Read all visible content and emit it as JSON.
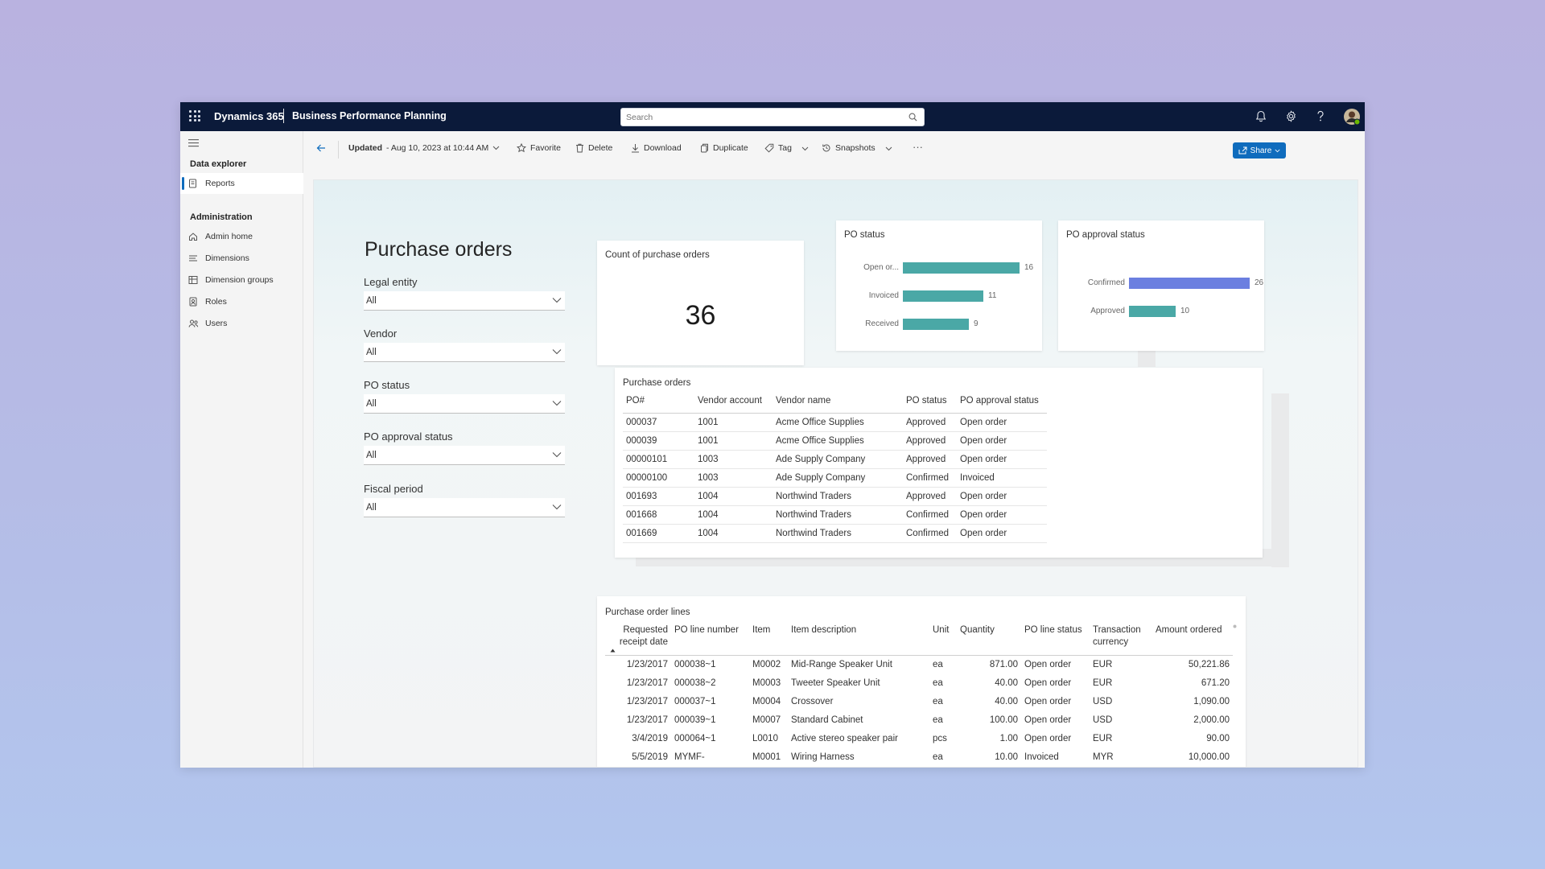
{
  "topbar": {
    "app_name": "Dynamics 365",
    "module_name": "Business Performance Planning",
    "search_placeholder": "Search"
  },
  "sidebar": {
    "section1": "Data explorer",
    "section1_items": [
      {
        "label": "Reports",
        "icon": "report-icon",
        "active": true
      }
    ],
    "section2": "Administration",
    "section2_items": [
      {
        "label": "Admin home",
        "icon": "home-icon"
      },
      {
        "label": "Dimensions",
        "icon": "list-icon"
      },
      {
        "label": "Dimension groups",
        "icon": "table-icon"
      },
      {
        "label": "Roles",
        "icon": "badge-icon"
      },
      {
        "label": "Users",
        "icon": "people-icon"
      }
    ]
  },
  "commandbar": {
    "updated": "Updated",
    "updated_date": "- Aug 10, 2023 at 10:44 AM",
    "favorite": "Favorite",
    "delete": "Delete",
    "download": "Download",
    "duplicate": "Duplicate",
    "tag": "Tag",
    "snapshots": "Snapshots",
    "more": "···",
    "share": "Share"
  },
  "report": {
    "title": "Purchase orders",
    "filters": [
      {
        "label": "Legal entity",
        "value": "All"
      },
      {
        "label": "Vendor",
        "value": "All"
      },
      {
        "label": "PO status",
        "value": "All"
      },
      {
        "label": "PO approval status",
        "value": "All"
      },
      {
        "label": "Fiscal period",
        "value": "All"
      }
    ],
    "count_card": {
      "title": "Count of purchase orders",
      "value": "36"
    },
    "po_status_card": {
      "title": "PO status"
    },
    "po_approval_card": {
      "title": "PO approval status"
    },
    "po_table": {
      "title": "Purchase orders",
      "columns": [
        "PO#",
        "Vendor account",
        "Vendor name",
        "PO status",
        "PO approval status"
      ],
      "rows": [
        [
          "000037",
          "1001",
          "Acme Office Supplies",
          "Approved",
          "Open order"
        ],
        [
          "000039",
          "1001",
          "Acme Office Supplies",
          "Approved",
          "Open order"
        ],
        [
          "00000101",
          "1003",
          "Ade Supply Company",
          "Approved",
          "Open order"
        ],
        [
          "00000100",
          "1003",
          "Ade Supply Company",
          "Confirmed",
          "Invoiced"
        ],
        [
          "001693",
          "1004",
          "Northwind Traders",
          "Approved",
          "Open order"
        ],
        [
          "001668",
          "1004",
          "Northwind Traders",
          "Confirmed",
          "Open order"
        ],
        [
          "001669",
          "1004",
          "Northwind Traders",
          "Confirmed",
          "Open order"
        ]
      ]
    },
    "pol_table": {
      "title": "Purchase order lines",
      "columns": [
        "Requested receipt date",
        "PO line number",
        "Item",
        "Item description",
        "Unit",
        "Quantity",
        "PO line status",
        "Transaction currency",
        "Amount ordered"
      ],
      "rows": [
        [
          "1/23/2017",
          "000038~1",
          "M0002",
          "Mid-Range Speaker Unit",
          "ea",
          "871.00",
          "Open order",
          "EUR",
          "50,221.86"
        ],
        [
          "1/23/2017",
          "000038~2",
          "M0003",
          "Tweeter Speaker Unit",
          "ea",
          "40.00",
          "Open order",
          "EUR",
          "671.20"
        ],
        [
          "1/23/2017",
          "000037~1",
          "M0004",
          "Crossover",
          "ea",
          "40.00",
          "Open order",
          "USD",
          "1,090.00"
        ],
        [
          "1/23/2017",
          "000039~1",
          "M0007",
          "Standard Cabinet",
          "ea",
          "100.00",
          "Open order",
          "USD",
          "2,000.00"
        ],
        [
          "3/4/2019",
          "000064~1",
          "L0010",
          "Active stereo speaker pair",
          "pcs",
          "1.00",
          "Open order",
          "EUR",
          "90.00"
        ],
        [
          "5/5/2019",
          "MYMF-",
          "M0001",
          "Wiring Harness",
          "ea",
          "10.00",
          "Invoiced",
          "MYR",
          "10,000.00"
        ]
      ]
    }
  },
  "chart_data": [
    {
      "type": "bar",
      "orientation": "horizontal",
      "title": "PO status",
      "categories": [
        "Open or...",
        "Invoiced",
        "Received"
      ],
      "values": [
        16,
        11,
        9
      ],
      "color": "#4aa8a6"
    },
    {
      "type": "bar",
      "orientation": "horizontal",
      "title": "PO approval status",
      "categories": [
        "Confirmed",
        "Approved"
      ],
      "values": [
        26,
        10
      ],
      "colors": [
        "#6b7fe0",
        "#4aa8a6"
      ]
    }
  ]
}
